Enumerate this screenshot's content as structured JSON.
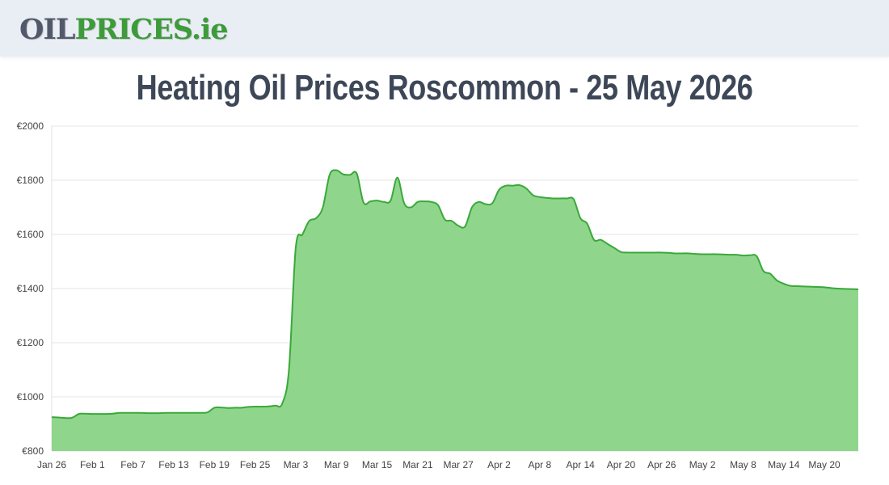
{
  "header": {
    "logo": {
      "part1": "OIL",
      "part2": "PRICES",
      "part3": ".ie"
    }
  },
  "page_title": "Heating Oil Prices Roscommon - 25 May 2026",
  "colors": {
    "line": "#3aa83a",
    "fill": "#8fd68c",
    "grid": "#e6e6e6",
    "header_bg": "#e9edf4",
    "title": "#3d4757"
  },
  "chart_data": {
    "type": "area",
    "title": "",
    "xlabel": "",
    "ylabel": "",
    "ylim": [
      800,
      2000
    ],
    "y_ticks": [
      "€800",
      "€1000",
      "€1200",
      "€1400",
      "€1600",
      "€1800",
      "€2000"
    ],
    "y_tick_values": [
      800,
      1000,
      1200,
      1400,
      1600,
      1800,
      2000
    ],
    "x_ticks": [
      "Jan 26",
      "Feb 1",
      "Feb 7",
      "Feb 13",
      "Feb 19",
      "Feb 25",
      "Mar 3",
      "Mar 9",
      "Mar 15",
      "Mar 21",
      "Mar 27",
      "Apr 2",
      "Apr 8",
      "Apr 14",
      "Apr 20",
      "Apr 26",
      "May 2",
      "May 8",
      "May 14",
      "May 20"
    ],
    "grid": true,
    "legend": "none",
    "x": [
      "Jan 26",
      "Jan 27",
      "Jan 28",
      "Jan 29",
      "Jan 30",
      "Jan 31",
      "Feb 1",
      "Feb 2",
      "Feb 3",
      "Feb 4",
      "Feb 5",
      "Feb 6",
      "Feb 7",
      "Feb 8",
      "Feb 9",
      "Feb 10",
      "Feb 11",
      "Feb 12",
      "Feb 13",
      "Feb 14",
      "Feb 15",
      "Feb 16",
      "Feb 17",
      "Feb 18",
      "Feb 19",
      "Feb 20",
      "Feb 21",
      "Feb 22",
      "Feb 23",
      "Feb 24",
      "Feb 25",
      "Feb 26",
      "Feb 27",
      "Feb 28",
      "Mar 1",
      "Mar 2",
      "Mar 3",
      "Mar 4",
      "Mar 5",
      "Mar 6",
      "Mar 7",
      "Mar 8",
      "Mar 9",
      "Mar 10",
      "Mar 11",
      "Mar 12",
      "Mar 13",
      "Mar 14",
      "Mar 15",
      "Mar 16",
      "Mar 17",
      "Mar 18",
      "Mar 19",
      "Mar 20",
      "Mar 21",
      "Mar 22",
      "Mar 23",
      "Mar 24",
      "Mar 25",
      "Mar 26",
      "Mar 27",
      "Mar 28",
      "Mar 29",
      "Mar 30",
      "Mar 31",
      "Apr 1",
      "Apr 2",
      "Apr 3",
      "Apr 4",
      "Apr 5",
      "Apr 6",
      "Apr 7",
      "Apr 8",
      "Apr 9",
      "Apr 10",
      "Apr 11",
      "Apr 12",
      "Apr 13",
      "Apr 14",
      "Apr 15",
      "Apr 16",
      "Apr 17",
      "Apr 18",
      "Apr 19",
      "Apr 20",
      "Apr 21",
      "Apr 22",
      "Apr 23",
      "Apr 24",
      "Apr 25",
      "Apr 26",
      "Apr 27",
      "Apr 28",
      "Apr 29",
      "Apr 30",
      "May 1",
      "May 2",
      "May 3",
      "May 4",
      "May 5",
      "May 6",
      "May 7",
      "May 8",
      "May 9",
      "May 10",
      "May 11",
      "May 12",
      "May 13",
      "May 14",
      "May 15",
      "May 16",
      "May 17",
      "May 18",
      "May 19",
      "May 20",
      "May 21",
      "May 22",
      "May 23",
      "May 24",
      "May 25"
    ],
    "series": [
      {
        "values": [
          925,
          924,
          922,
          923,
          937,
          938,
          937,
          937,
          937,
          938,
          941,
          941,
          941,
          941,
          940,
          940,
          940,
          941,
          941,
          941,
          941,
          941,
          941,
          943,
          960,
          961,
          959,
          960,
          960,
          963,
          964,
          964,
          965,
          968,
          975,
          1100,
          1550,
          1600,
          1650,
          1660,
          1700,
          1820,
          1837,
          1822,
          1820,
          1825,
          1718,
          1722,
          1725,
          1720,
          1725,
          1810,
          1715,
          1700,
          1720,
          1722,
          1720,
          1708,
          1655,
          1650,
          1632,
          1630,
          1700,
          1720,
          1712,
          1715,
          1765,
          1780,
          1780,
          1782,
          1770,
          1745,
          1738,
          1735,
          1733,
          1733,
          1733,
          1730,
          1660,
          1640,
          1580,
          1580,
          1565,
          1550,
          1535,
          1533,
          1533,
          1533,
          1533,
          1533,
          1533,
          1532,
          1530,
          1530,
          1530,
          1528,
          1527,
          1527,
          1527,
          1526,
          1525,
          1525,
          1522,
          1523,
          1520,
          1465,
          1455,
          1430,
          1418,
          1410,
          1409,
          1408,
          1407,
          1406,
          1405,
          1402,
          1400,
          1399,
          1398,
          1397
        ]
      }
    ]
  }
}
